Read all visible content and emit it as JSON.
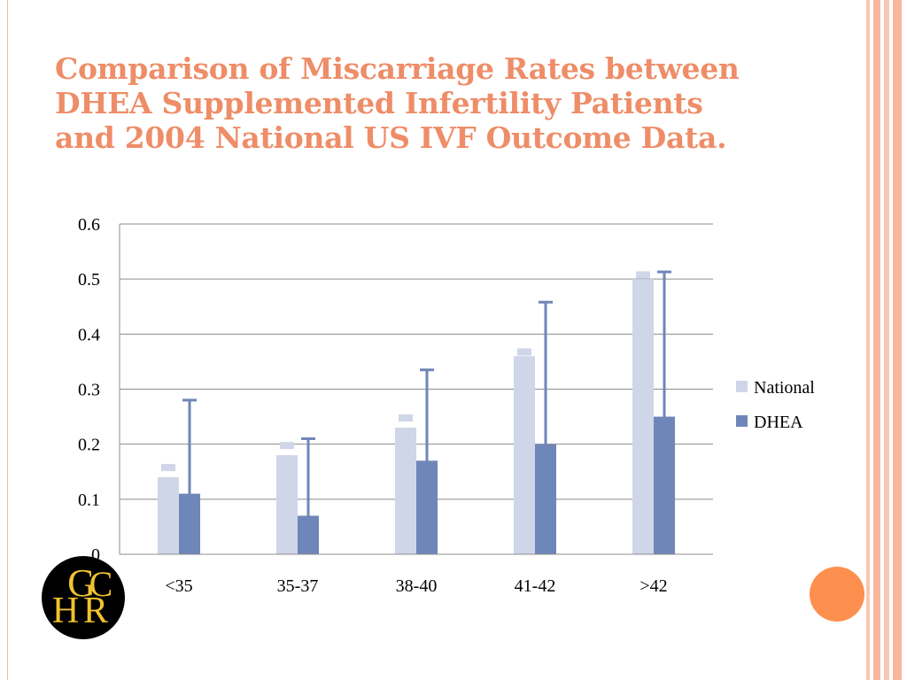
{
  "slide": {
    "title_lines": [
      "Comparison of Miscarriage Rates between",
      "DHEA Supplemented Infertility Patients",
      "and 2004 National US IVF Outcome Data."
    ]
  },
  "colors": {
    "title": "#ee8d68",
    "national": "#cfd6e8",
    "dhea": "#6f86b8",
    "grid": "#8c8c8c",
    "accent_dot": "#fd8f4f",
    "logo_bg": "#000000",
    "logo_letters": "#f2c22f"
  },
  "logo": {
    "icon": "ghcr-logo-icon",
    "letters": [
      "G",
      "C",
      "H",
      "R"
    ]
  },
  "chart_data": {
    "type": "bar",
    "categories": [
      "<35",
      "35-37",
      "38-40",
      "41-42",
      ">42"
    ],
    "series": [
      {
        "name": "National",
        "values": [
          0.14,
          0.18,
          0.23,
          0.36,
          0.5
        ],
        "error_plus": [
          0.024,
          0.024,
          0.024,
          0.014,
          0.014
        ]
      },
      {
        "name": "DHEA",
        "values": [
          0.11,
          0.07,
          0.17,
          0.2,
          0.25
        ],
        "error_minus": [
          0.0,
          0.0,
          0.0,
          0.0,
          0.0
        ],
        "error_plus": [
          0.17,
          0.14,
          0.165,
          0.258,
          0.263
        ]
      }
    ],
    "ylim": [
      0,
      0.6
    ],
    "yticks": [
      "0",
      "0.1",
      "0.2",
      "0.3",
      "0.4",
      "0.5",
      "0.6"
    ],
    "grid": true,
    "legend_position": "right"
  }
}
